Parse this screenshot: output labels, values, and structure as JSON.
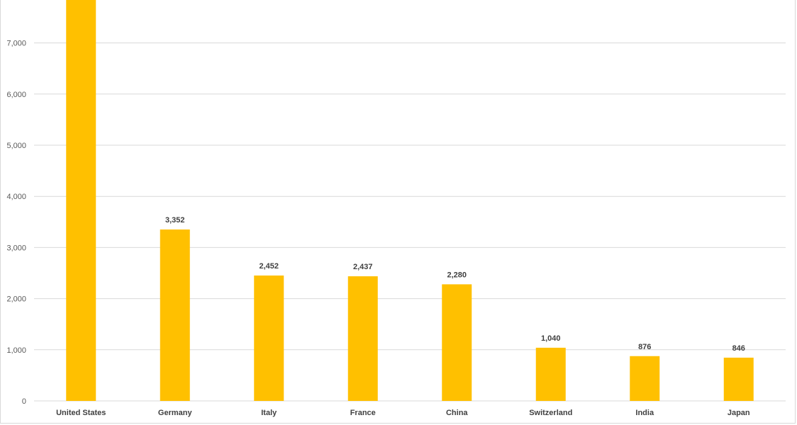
{
  "chart_data": {
    "type": "bar",
    "categories": [
      "United States",
      "Germany",
      "Italy",
      "France",
      "China",
      "Switzerland",
      "India",
      "Japan"
    ],
    "values": [
      8000,
      3352,
      2452,
      2437,
      2280,
      1040,
      876,
      846
    ],
    "data_labels": [
      "",
      "3,352",
      "2,452",
      "2,437",
      "2,280",
      "1,040",
      "876",
      "846"
    ],
    "y_ticks": [
      "0",
      "1,000",
      "2,000",
      "3,000",
      "4,000",
      "5,000",
      "6,000",
      "7,000"
    ],
    "ylim": [
      0,
      7800
    ],
    "grid": true,
    "bar_color": "#FFC000",
    "title": "",
    "xlabel": "",
    "ylabel": ""
  }
}
